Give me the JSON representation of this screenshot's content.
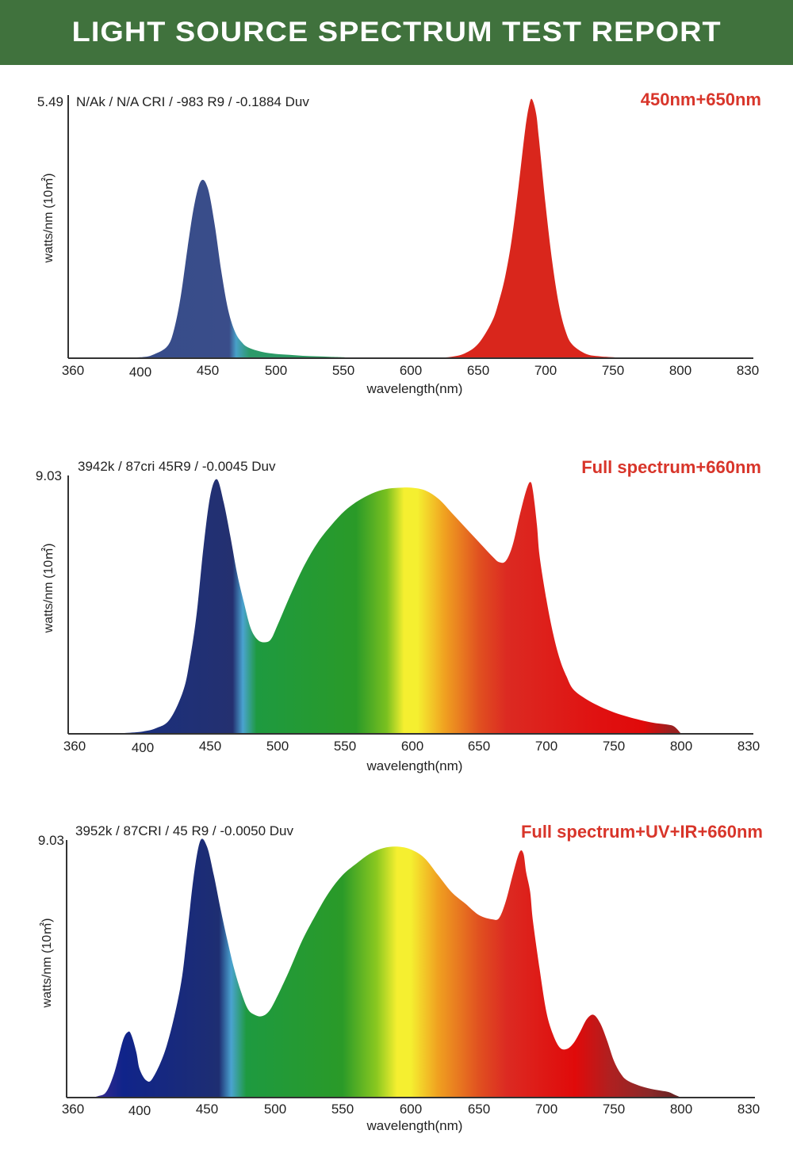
{
  "header": {
    "title": "LIGHT SOURCE SPECTRUM TEST REPORT",
    "bg_color": "#40723d"
  },
  "chart_data": [
    {
      "type": "area",
      "title": "450nm+650nm",
      "info": "N/Ak / N/A CRI / -983 R9 / -0.1884 Duv",
      "ymax_label": "5.49",
      "ylim": [
        0,
        5.49
      ],
      "xlabel": "wavelength(nm)",
      "ylabel": "watts/nm (10㎡)",
      "xticks": [
        "360",
        "400",
        "450",
        "500",
        "550",
        "600",
        "650",
        "700",
        "750",
        "800",
        "830"
      ],
      "series": [
        {
          "name": "blue",
          "x": [
            377,
            400,
            410,
            420,
            425,
            430,
            435,
            440,
            445,
            450,
            455,
            460,
            465,
            470,
            475,
            480,
            490,
            500,
            510,
            520,
            530,
            540,
            550,
            555
          ],
          "y": [
            0.0,
            0.02,
            0.08,
            0.25,
            0.6,
            1.3,
            2.3,
            3.2,
            3.7,
            3.55,
            2.8,
            1.8,
            1.0,
            0.55,
            0.33,
            0.22,
            0.13,
            0.09,
            0.07,
            0.05,
            0.04,
            0.03,
            0.02,
            0.0
          ]
        },
        {
          "name": "red",
          "x": [
            617,
            630,
            640,
            650,
            660,
            665,
            670,
            675,
            680,
            685,
            688,
            690,
            693,
            695,
            700,
            705,
            710,
            715,
            720,
            730,
            740,
            750,
            757
          ],
          "y": [
            0.0,
            0.03,
            0.1,
            0.3,
            0.75,
            1.15,
            1.7,
            2.5,
            3.6,
            4.8,
            5.3,
            5.4,
            5.1,
            4.6,
            3.2,
            2.0,
            1.1,
            0.55,
            0.28,
            0.09,
            0.04,
            0.02,
            0.0
          ]
        }
      ]
    },
    {
      "type": "area",
      "title": "Full spectrum+660nm",
      "info": "3942k / 87cri 45R9 / -0.0045 Duv",
      "ymax_label": "9.03",
      "ylim": [
        0,
        9.03
      ],
      "xlabel": "wavelength(nm)",
      "ylabel": "watts/nm (10㎡)",
      "xticks": [
        "360",
        "400",
        "450",
        "500",
        "550",
        "600",
        "650",
        "700",
        "750",
        "800",
        "830"
      ],
      "series": [
        {
          "name": "full",
          "x": [
            380,
            390,
            400,
            410,
            420,
            430,
            435,
            440,
            445,
            450,
            455,
            460,
            465,
            470,
            475,
            480,
            485,
            490,
            495,
            500,
            510,
            520,
            530,
            540,
            550,
            560,
            570,
            580,
            590,
            600,
            610,
            620,
            630,
            640,
            650,
            660,
            665,
            670,
            675,
            680,
            685,
            688,
            690,
            693,
            695,
            700,
            705,
            710,
            715,
            720,
            730,
            740,
            750,
            760,
            770,
            780,
            790,
            795,
            800
          ],
          "y": [
            0.0,
            0.03,
            0.08,
            0.2,
            0.5,
            1.5,
            2.6,
            4.2,
            6.5,
            8.3,
            8.9,
            8.1,
            6.9,
            5.6,
            4.6,
            3.7,
            3.3,
            3.2,
            3.3,
            3.8,
            4.9,
            5.9,
            6.7,
            7.3,
            7.8,
            8.15,
            8.4,
            8.55,
            8.6,
            8.6,
            8.5,
            8.2,
            7.7,
            7.2,
            6.7,
            6.2,
            6.0,
            6.05,
            6.6,
            7.6,
            8.5,
            8.8,
            8.5,
            7.3,
            6.2,
            4.7,
            3.5,
            2.6,
            2.0,
            1.55,
            1.2,
            0.95,
            0.75,
            0.6,
            0.48,
            0.38,
            0.32,
            0.25,
            0.0
          ]
        }
      ]
    },
    {
      "type": "area",
      "title": "Full spectrum+UV+IR+660nm",
      "info": "3952k / 87CRI / 45 R9 / -0.0050 Duv",
      "ymax_label": "9.03",
      "ylim": [
        0,
        9.03
      ],
      "xlabel": "wavelength(nm)",
      "ylabel": "watts/nm (10㎡)",
      "xticks": [
        "360",
        "400",
        "450",
        "500",
        "550",
        "600",
        "650",
        "700",
        "750",
        "800",
        "830"
      ],
      "series": [
        {
          "name": "full-uv-ir",
          "x": [
            370,
            375,
            380,
            385,
            390,
            393,
            395,
            398,
            400,
            405,
            410,
            420,
            430,
            435,
            440,
            445,
            450,
            455,
            460,
            465,
            470,
            475,
            480,
            485,
            490,
            495,
            500,
            510,
            520,
            530,
            540,
            550,
            560,
            570,
            580,
            590,
            600,
            610,
            620,
            630,
            640,
            650,
            660,
            665,
            670,
            675,
            680,
            683,
            685,
            688,
            690,
            695,
            700,
            705,
            710,
            715,
            720,
            725,
            730,
            735,
            740,
            745,
            750,
            755,
            760,
            770,
            780,
            790,
            795,
            800
          ],
          "y": [
            0.0,
            0.05,
            0.2,
            0.9,
            2.0,
            2.3,
            2.2,
            1.6,
            1.0,
            0.6,
            0.7,
            1.8,
            3.8,
            5.6,
            7.7,
            9.0,
            8.8,
            7.8,
            6.6,
            5.5,
            4.5,
            3.7,
            3.1,
            2.9,
            2.85,
            3.0,
            3.4,
            4.4,
            5.5,
            6.4,
            7.2,
            7.8,
            8.2,
            8.55,
            8.75,
            8.8,
            8.7,
            8.4,
            7.8,
            7.2,
            6.8,
            6.4,
            6.25,
            6.3,
            6.9,
            7.8,
            8.6,
            8.55,
            7.9,
            7.2,
            6.2,
            4.5,
            3.0,
            2.2,
            1.75,
            1.7,
            1.9,
            2.3,
            2.75,
            2.9,
            2.6,
            2.0,
            1.3,
            0.85,
            0.6,
            0.4,
            0.28,
            0.2,
            0.1,
            0.0
          ]
        }
      ]
    }
  ]
}
